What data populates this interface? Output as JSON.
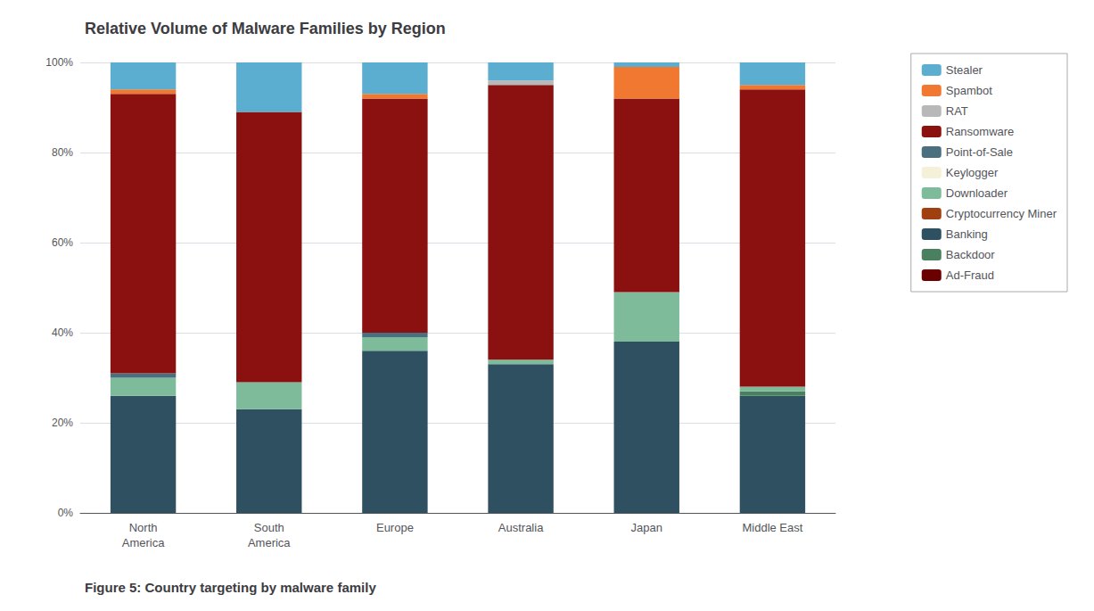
{
  "chart_data": {
    "type": "bar",
    "title": "Relative Volume of Malware Families by Region",
    "caption": "Figure 5: Country targeting by malware family",
    "categories": [
      "North\nAmerica",
      "South\nAmerica",
      "Europe",
      "Australia",
      "Japan",
      "Middle East"
    ],
    "stacked": true,
    "series": [
      {
        "name": "Banking",
        "color": "#2E5060",
        "values": [
          26,
          23,
          36,
          33,
          38,
          26
        ]
      },
      {
        "name": "Backdoor",
        "color": "#4A8060",
        "values": [
          0,
          0,
          0,
          0,
          0,
          1
        ]
      },
      {
        "name": "Cryptocurrency Miner",
        "color": "#A04010",
        "values": [
          0,
          0,
          0,
          0,
          0,
          0
        ]
      },
      {
        "name": "Downloader",
        "color": "#7EBB9A",
        "values": [
          4,
          6,
          3,
          1,
          11,
          1
        ]
      },
      {
        "name": "Keylogger",
        "color": "#F5F0D8",
        "values": [
          0,
          0,
          0,
          0,
          0,
          0
        ]
      },
      {
        "name": "Point-of-Sale",
        "color": "#4A7080",
        "values": [
          1,
          0,
          1,
          0,
          0,
          0
        ]
      },
      {
        "name": "Ransomware",
        "color": "#8B1010",
        "values": [
          62,
          60,
          52,
          61,
          43,
          66
        ]
      },
      {
        "name": "RAT",
        "color": "#B8B8B8",
        "values": [
          0,
          0,
          0,
          1,
          0,
          0
        ]
      },
      {
        "name": "Spambot",
        "color": "#F07830",
        "values": [
          1,
          0,
          1,
          0,
          7,
          1
        ]
      },
      {
        "name": "Stealer",
        "color": "#5BAED0",
        "values": [
          6,
          11,
          7,
          4,
          1,
          5
        ]
      },
      {
        "name": "Ad-Fraud",
        "color": "#6B0000",
        "values": [
          0,
          0,
          0,
          0,
          0,
          0
        ]
      }
    ],
    "legend_labels": [
      "Stealer",
      "Spambot",
      "RAT",
      "Ransomware",
      "Point-of-Sale",
      "Keylogger",
      "Downloader",
      "Cryptocurrency Miner",
      "Banking",
      "Backdoor",
      "Ad-Fraud"
    ],
    "legend": "upper right",
    "ylim": [
      0,
      100
    ],
    "yticks": [
      {
        "value": 0,
        "label": "0%"
      },
      {
        "value": 20,
        "label": "20%"
      },
      {
        "value": 40,
        "label": "40%"
      },
      {
        "value": 60,
        "label": "60%"
      },
      {
        "value": 80,
        "label": "80%"
      },
      {
        "value": 100,
        "label": "100%"
      }
    ],
    "grid": true
  }
}
